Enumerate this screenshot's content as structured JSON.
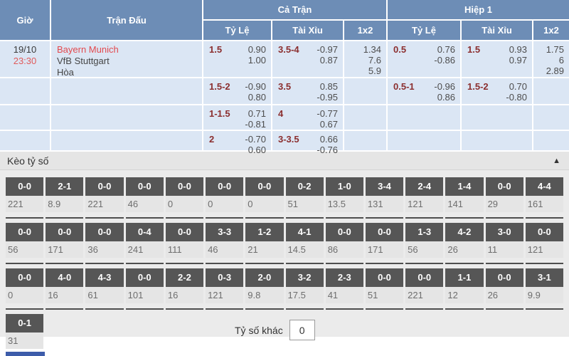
{
  "colors": {
    "header_blue": "#6d8db6",
    "row_blue": "#dbe6f4",
    "team_red": "#e3494e",
    "handicap_red": "#8b2e2e",
    "score_box_gray": "#565656",
    "partial_box_blue": "#3d5caa"
  },
  "header": {
    "time": "Giờ",
    "match": "Trận Đấu",
    "full_match": "Cả Trận",
    "first_half": "Hiệp 1",
    "handicap": "Tỷ Lệ",
    "over_under": "Tài Xỉu",
    "one_x_two": "1x2"
  },
  "match": {
    "date": "19/10",
    "time": "23:30",
    "home": "Bayern Munich",
    "away": "VfB Stuttgart",
    "draw": "Hòa"
  },
  "odds_rows": [
    {
      "ft_hc": {
        "line": "1.5",
        "o1": "0.90",
        "o2": "1.00"
      },
      "ft_ou": {
        "line": "3.5-4",
        "o1": "-0.97",
        "o2": "0.87"
      },
      "ft_1x2": [
        "1.34",
        "7.6",
        "5.9"
      ],
      "h1_hc": {
        "line": "0.5",
        "o1": "0.76",
        "o2": "-0.86"
      },
      "h1_ou": {
        "line": "1.5",
        "o1": "0.93",
        "o2": "0.97"
      },
      "h1_1x2": [
        "1.75",
        "6",
        "2.89"
      ]
    },
    {
      "ft_hc": {
        "line": "1.5-2",
        "o1": "-0.90",
        "o2": "0.80"
      },
      "ft_ou": {
        "line": "3.5",
        "o1": "0.85",
        "o2": "-0.95"
      },
      "h1_hc": {
        "line": "0.5-1",
        "o1": "-0.96",
        "o2": "0.86"
      },
      "h1_ou": {
        "line": "1.5-2",
        "o1": "0.70",
        "o2": "-0.80"
      }
    },
    {
      "ft_hc": {
        "line": "1-1.5",
        "o1": "0.71",
        "o2": "-0.81"
      },
      "ft_ou": {
        "line": "4",
        "o1": "-0.77",
        "o2": "0.67"
      }
    },
    {
      "ft_hc": {
        "line": "2",
        "o1": "-0.70",
        "o2": "0.60"
      },
      "ft_ou": {
        "line": "3-3.5",
        "o1": "0.66",
        "o2": "-0.76"
      }
    }
  ],
  "score_section": {
    "title": "Kèo tỷ số",
    "collapse_icon": "▲",
    "other_score_label": "Tỷ số khác",
    "other_score_value": "0",
    "rows": [
      [
        {
          "s": "0-0",
          "v": "221"
        },
        {
          "s": "2-1",
          "v": "8.9"
        },
        {
          "s": "0-0",
          "v": "221"
        },
        {
          "s": "0-0",
          "v": "46"
        },
        {
          "s": "0-0",
          "v": "0"
        },
        {
          "s": "0-0",
          "v": "0"
        },
        {
          "s": "0-0",
          "v": "0"
        },
        {
          "s": "0-2",
          "v": "51"
        },
        {
          "s": "1-0",
          "v": "13.5"
        },
        {
          "s": "3-4",
          "v": "131"
        },
        {
          "s": "2-4",
          "v": "121"
        },
        {
          "s": "1-4",
          "v": "141"
        },
        {
          "s": "0-0",
          "v": "29"
        },
        {
          "s": "4-4",
          "v": "161"
        }
      ],
      [
        {
          "s": "0-0",
          "v": "56"
        },
        {
          "s": "0-0",
          "v": "171"
        },
        {
          "s": "0-0",
          "v": "36"
        },
        {
          "s": "0-4",
          "v": "241"
        },
        {
          "s": "0-0",
          "v": "111"
        },
        {
          "s": "3-3",
          "v": "46"
        },
        {
          "s": "1-2",
          "v": "21"
        },
        {
          "s": "4-1",
          "v": "14.5"
        },
        {
          "s": "0-0",
          "v": "86"
        },
        {
          "s": "0-0",
          "v": "171"
        },
        {
          "s": "1-3",
          "v": "56"
        },
        {
          "s": "4-2",
          "v": "26"
        },
        {
          "s": "3-0",
          "v": "11"
        },
        {
          "s": "0-0",
          "v": "121"
        }
      ],
      [
        {
          "s": "0-0",
          "v": "0"
        },
        {
          "s": "4-0",
          "v": "16"
        },
        {
          "s": "4-3",
          "v": "61"
        },
        {
          "s": "0-0",
          "v": "101"
        },
        {
          "s": "2-2",
          "v": "16"
        },
        {
          "s": "0-3",
          "v": "121"
        },
        {
          "s": "2-0",
          "v": "9.8"
        },
        {
          "s": "3-2",
          "v": "17.5"
        },
        {
          "s": "2-3",
          "v": "41"
        },
        {
          "s": "0-0",
          "v": "51"
        },
        {
          "s": "0-0",
          "v": "221"
        },
        {
          "s": "1-1",
          "v": "12"
        },
        {
          "s": "0-0",
          "v": "26"
        },
        {
          "s": "3-1",
          "v": "9.9"
        }
      ],
      [
        {
          "s": "0-1",
          "v": "31"
        },
        null,
        null,
        null,
        null,
        null,
        null,
        null,
        null,
        null,
        null,
        null,
        null,
        null
      ]
    ]
  }
}
